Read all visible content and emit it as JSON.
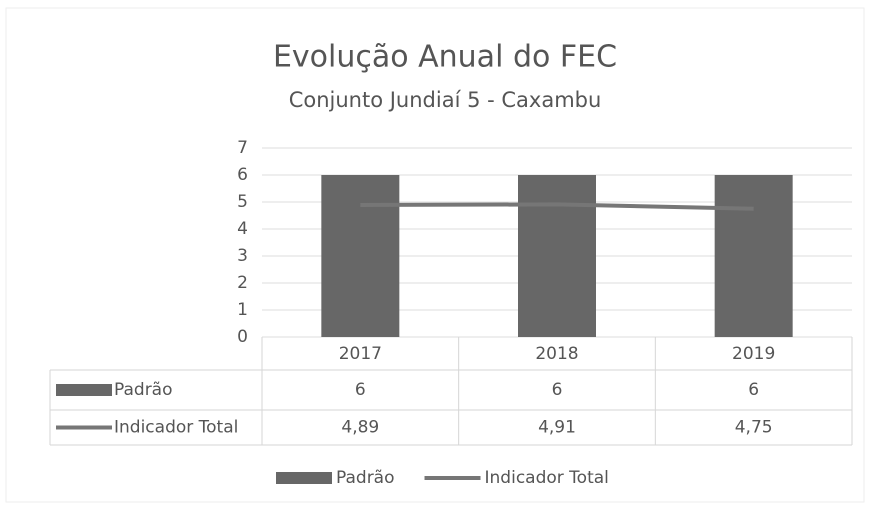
{
  "chart_data": {
    "type": "bar-line",
    "title": "Evolução Anual do FEC",
    "subtitle": "Conjunto Jundiaí 5 - Caxambu",
    "categories": [
      "2017",
      "2018",
      "2019"
    ],
    "series": [
      {
        "name": "Padrão",
        "type": "bar",
        "color": "#676767",
        "values": [
          6,
          6,
          6
        ]
      },
      {
        "name": "Indicador Total",
        "type": "line",
        "color": "#767676",
        "values": [
          4.89,
          4.91,
          4.75
        ],
        "value_labels": [
          "4,89",
          "4,91",
          "4,75"
        ]
      }
    ],
    "ylim": [
      0,
      7
    ],
    "yticks": [
      0,
      1,
      2,
      3,
      4,
      5,
      6,
      7
    ],
    "grid": true,
    "legend": "bottom",
    "data_table": true
  }
}
